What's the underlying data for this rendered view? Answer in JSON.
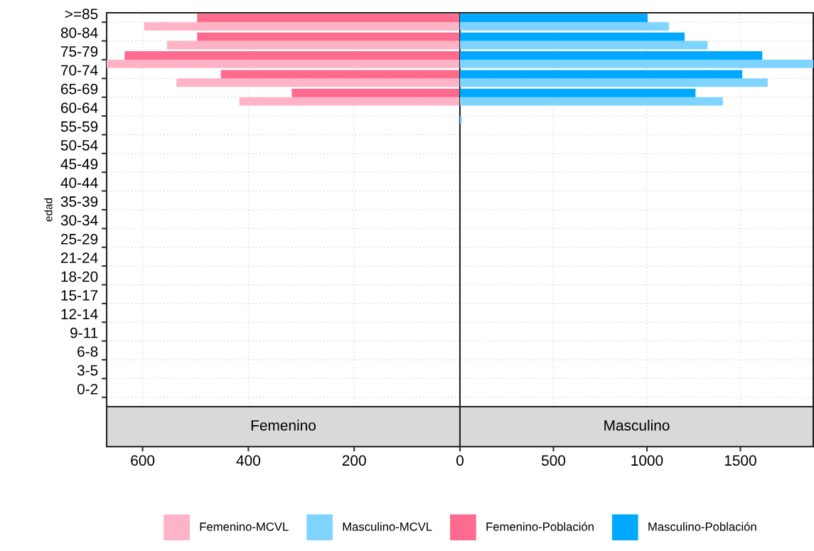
{
  "chart_data": [
    {
      "type": "bar",
      "orientation": "horizontal",
      "title": "Femenino",
      "ylabel": "edad",
      "categories": [
        ">=85",
        "80-84",
        "75-79",
        "70-74",
        "65-69",
        "60-64",
        "55-59",
        "50-54",
        "45-49",
        "40-44",
        "35-39",
        "30-34",
        "25-29",
        "21-24",
        "18-20",
        "15-17",
        "12-14",
        "9-11",
        "6-8",
        "3-5",
        "0-2"
      ],
      "series": [
        {
          "name": "Femenino-MCVL",
          "color": "#ffb3c6",
          "values": [
            597,
            554,
            668,
            536,
            417,
            null,
            null,
            null,
            null,
            null,
            null,
            null,
            null,
            null,
            null,
            null,
            null,
            null,
            null,
            null,
            null
          ]
        },
        {
          "name": "Femenino-Población",
          "color": "#ff6b8f",
          "values": [
            497,
            497,
            634,
            452,
            318,
            null,
            null,
            null,
            null,
            null,
            null,
            null,
            null,
            null,
            null,
            null,
            null,
            null,
            null,
            null,
            null
          ]
        }
      ],
      "xlim": [
        668,
        0
      ],
      "xticks": [
        {
          "value": 0,
          "label": null
        },
        200,
        400,
        600
      ],
      "grid": true,
      "legend": "bottom"
    },
    {
      "type": "bar",
      "orientation": "horizontal",
      "title": "Masculino",
      "categories": [
        null,
        null,
        null,
        null,
        null,
        null,
        null,
        null,
        null,
        null,
        null,
        null,
        null,
        null,
        null,
        null,
        null,
        null,
        null,
        null,
        null
      ],
      "series": [
        {
          "name": "Masculino-MCVL",
          "color": "#7fd4ff",
          "values": [
            1118,
            1325,
            1890,
            1646,
            1406,
            10,
            null,
            null,
            null,
            null,
            null,
            null,
            null,
            null,
            null,
            null,
            null,
            null,
            null,
            null,
            null
          ]
        },
        {
          "name": "Masculino-Población",
          "color": "#00a9ff",
          "values": [
            1004,
            1202,
            1617,
            1510,
            1260,
            null,
            null,
            null,
            null,
            null,
            null,
            null,
            null,
            null,
            null,
            null,
            null,
            null,
            null,
            null,
            null
          ]
        }
      ],
      "xlim": [
        0,
        1890
      ],
      "xticks": [
        0,
        500,
        1000,
        1500
      ],
      "grid": true,
      "legend": "bottom",
      "tick_labels": "x"
    }
  ]
}
